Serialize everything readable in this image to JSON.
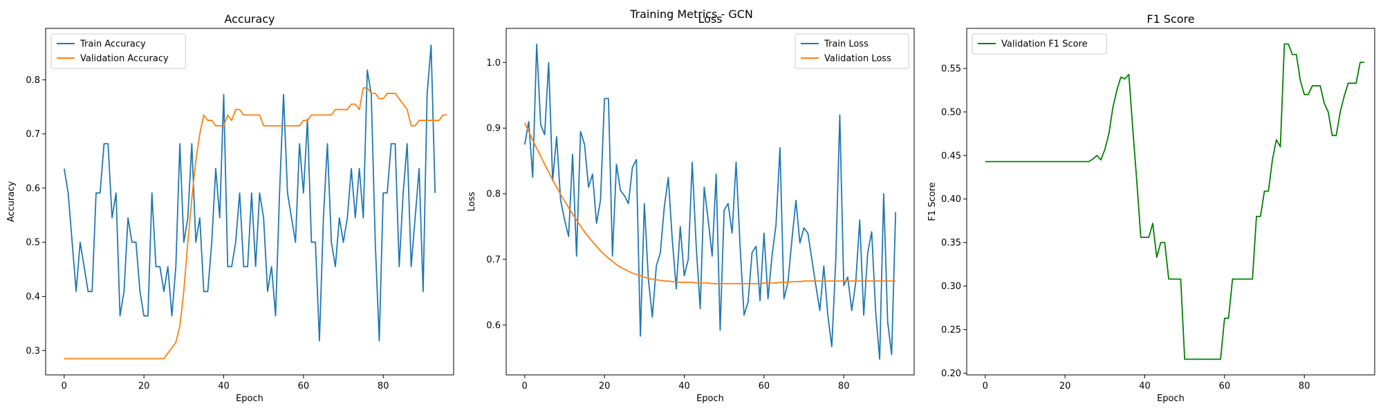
{
  "suptitle": "Training Metrics - GCN",
  "colors": {
    "train": "#1f77b4",
    "validation": "#ff7f0e",
    "f1": "#008000"
  },
  "chart_data": [
    {
      "type": "line",
      "title": "Accuracy",
      "xlabel": "Epoch",
      "ylabel": "Accuracy",
      "xlim": [
        -4.65,
        97.65
      ],
      "ylim": [
        0.255,
        0.895
      ],
      "xticks": [
        0,
        20,
        40,
        60,
        80
      ],
      "yticks": [
        0.3,
        0.4,
        0.5,
        0.6,
        0.7,
        0.8
      ],
      "ytick_labels": [
        "0.3",
        "0.4",
        "0.5",
        "0.6",
        "0.7",
        "0.8"
      ],
      "legend_position": "upper-left",
      "series": [
        {
          "name": "Train Accuracy",
          "color": "#1f77b4",
          "values": [
            0.636,
            0.591,
            0.5,
            0.409,
            0.5,
            0.455,
            0.409,
            0.409,
            0.591,
            0.591,
            0.682,
            0.682,
            0.545,
            0.591,
            0.364,
            0.409,
            0.545,
            0.5,
            0.5,
            0.409,
            0.364,
            0.364,
            0.591,
            0.455,
            0.455,
            0.409,
            0.455,
            0.364,
            0.455,
            0.682,
            0.5,
            0.545,
            0.682,
            0.5,
            0.545,
            0.409,
            0.409,
            0.5,
            0.636,
            0.545,
            0.773,
            0.455,
            0.455,
            0.5,
            0.591,
            0.455,
            0.455,
            0.591,
            0.455,
            0.591,
            0.545,
            0.409,
            0.455,
            0.364,
            0.591,
            0.773,
            0.591,
            0.545,
            0.5,
            0.682,
            0.591,
            0.727,
            0.5,
            0.5,
            0.318,
            0.545,
            0.682,
            0.5,
            0.455,
            0.545,
            0.5,
            0.545,
            0.636,
            0.545,
            0.636,
            0.545,
            0.818,
            0.773,
            0.5,
            0.318,
            0.591,
            0.591,
            0.682,
            0.682,
            0.455,
            0.591,
            0.682,
            0.455,
            0.545,
            0.636,
            0.409,
            0.773,
            0.864,
            0.591
          ]
        },
        {
          "name": "Validation Accuracy",
          "color": "#ff7f0e",
          "values": [
            0.285,
            0.285,
            0.285,
            0.285,
            0.285,
            0.285,
            0.285,
            0.285,
            0.285,
            0.285,
            0.285,
            0.285,
            0.285,
            0.285,
            0.285,
            0.285,
            0.285,
            0.285,
            0.285,
            0.285,
            0.285,
            0.285,
            0.285,
            0.285,
            0.285,
            0.285,
            0.295,
            0.305,
            0.315,
            0.345,
            0.41,
            0.5,
            0.58,
            0.65,
            0.7,
            0.735,
            0.725,
            0.725,
            0.715,
            0.715,
            0.715,
            0.735,
            0.725,
            0.745,
            0.745,
            0.735,
            0.735,
            0.735,
            0.735,
            0.735,
            0.715,
            0.715,
            0.715,
            0.715,
            0.715,
            0.715,
            0.715,
            0.715,
            0.715,
            0.715,
            0.725,
            0.725,
            0.735,
            0.735,
            0.735,
            0.735,
            0.735,
            0.735,
            0.745,
            0.745,
            0.745,
            0.745,
            0.755,
            0.755,
            0.745,
            0.785,
            0.785,
            0.775,
            0.775,
            0.765,
            0.765,
            0.775,
            0.775,
            0.775,
            0.765,
            0.755,
            0.745,
            0.715,
            0.715,
            0.725,
            0.725,
            0.725,
            0.725,
            0.725,
            0.725,
            0.735,
            0.735
          ]
        }
      ]
    },
    {
      "type": "line",
      "title": "Loss",
      "xlabel": "Epoch",
      "ylabel": "Loss",
      "xlim": [
        -4.65,
        97.65
      ],
      "ylim": [
        0.524,
        1.052
      ],
      "xticks": [
        0,
        20,
        40,
        60,
        80
      ],
      "yticks": [
        0.6,
        0.7,
        0.8,
        0.9,
        1.0
      ],
      "ytick_labels": [
        "0.6",
        "0.7",
        "0.8",
        "0.9",
        "1.0"
      ],
      "legend_position": "upper-right",
      "series": [
        {
          "name": "Train Loss",
          "color": "#1f77b4",
          "values": [
            0.875,
            0.91,
            0.825,
            1.028,
            0.905,
            0.89,
            1.0,
            0.82,
            0.887,
            0.79,
            0.76,
            0.735,
            0.86,
            0.705,
            0.895,
            0.875,
            0.81,
            0.83,
            0.755,
            0.79,
            0.945,
            0.945,
            0.705,
            0.845,
            0.805,
            0.797,
            0.785,
            0.84,
            0.852,
            0.583,
            0.785,
            0.67,
            0.612,
            0.69,
            0.71,
            0.78,
            0.825,
            0.73,
            0.655,
            0.75,
            0.675,
            0.7,
            0.848,
            0.72,
            0.625,
            0.81,
            0.76,
            0.705,
            0.83,
            0.592,
            0.775,
            0.785,
            0.74,
            0.848,
            0.72,
            0.615,
            0.635,
            0.71,
            0.72,
            0.637,
            0.74,
            0.64,
            0.705,
            0.752,
            0.87,
            0.64,
            0.665,
            0.73,
            0.79,
            0.725,
            0.748,
            0.74,
            0.7,
            0.66,
            0.622,
            0.69,
            0.615,
            0.567,
            0.7,
            0.92,
            0.66,
            0.673,
            0.622,
            0.665,
            0.76,
            0.615,
            0.71,
            0.742,
            0.62,
            0.548,
            0.8,
            0.605,
            0.555,
            0.772
          ]
        },
        {
          "name": "Validation Loss",
          "color": "#ff7f0e",
          "values": [
            0.908,
            0.895,
            0.882,
            0.869,
            0.857,
            0.845,
            0.833,
            0.821,
            0.81,
            0.799,
            0.789,
            0.779,
            0.769,
            0.76,
            0.751,
            0.742,
            0.734,
            0.727,
            0.72,
            0.713,
            0.707,
            0.702,
            0.697,
            0.692,
            0.688,
            0.685,
            0.682,
            0.679,
            0.677,
            0.675,
            0.673,
            0.671,
            0.67,
            0.669,
            0.668,
            0.667,
            0.667,
            0.666,
            0.666,
            0.665,
            0.665,
            0.665,
            0.665,
            0.664,
            0.664,
            0.664,
            0.664,
            0.663,
            0.663,
            0.663,
            0.663,
            0.663,
            0.663,
            0.663,
            0.663,
            0.663,
            0.663,
            0.663,
            0.663,
            0.663,
            0.664,
            0.664,
            0.664,
            0.664,
            0.665,
            0.665,
            0.665,
            0.666,
            0.666,
            0.666,
            0.667,
            0.667,
            0.667,
            0.667,
            0.667,
            0.667,
            0.667,
            0.667,
            0.667,
            0.667,
            0.667,
            0.667,
            0.667,
            0.667,
            0.667,
            0.667,
            0.667,
            0.667,
            0.667,
            0.667,
            0.667,
            0.667,
            0.667,
            0.667
          ]
        }
      ]
    },
    {
      "type": "line",
      "title": "F1 Score",
      "xlabel": "Epoch",
      "ylabel": "F1 Score",
      "xlim": [
        -4.65,
        97.65
      ],
      "ylim": [
        0.198,
        0.596
      ],
      "xticks": [
        0,
        20,
        40,
        60,
        80
      ],
      "yticks": [
        0.2,
        0.25,
        0.3,
        0.35,
        0.4,
        0.45,
        0.5,
        0.55
      ],
      "ytick_labels": [
        "0.20",
        "0.25",
        "0.30",
        "0.35",
        "0.40",
        "0.45",
        "0.50",
        "0.55"
      ],
      "legend_position": "upper-left",
      "series": [
        {
          "name": "Validation F1 Score",
          "color": "#008000",
          "values": [
            0.443,
            0.443,
            0.443,
            0.443,
            0.443,
            0.443,
            0.443,
            0.443,
            0.443,
            0.443,
            0.443,
            0.443,
            0.443,
            0.443,
            0.443,
            0.443,
            0.443,
            0.443,
            0.443,
            0.443,
            0.443,
            0.443,
            0.443,
            0.443,
            0.443,
            0.443,
            0.443,
            0.446,
            0.45,
            0.445,
            0.457,
            0.475,
            0.505,
            0.525,
            0.54,
            0.538,
            0.543,
            0.48,
            0.42,
            0.356,
            0.356,
            0.356,
            0.372,
            0.333,
            0.35,
            0.35,
            0.308,
            0.308,
            0.308,
            0.308,
            0.216,
            0.216,
            0.216,
            0.216,
            0.216,
            0.216,
            0.216,
            0.216,
            0.216,
            0.216,
            0.263,
            0.263,
            0.308,
            0.308,
            0.308,
            0.308,
            0.308,
            0.308,
            0.38,
            0.38,
            0.409,
            0.409,
            0.445,
            0.468,
            0.46,
            0.578,
            0.578,
            0.566,
            0.566,
            0.536,
            0.52,
            0.52,
            0.53,
            0.53,
            0.53,
            0.51,
            0.5,
            0.473,
            0.473,
            0.5,
            0.518,
            0.533,
            0.533,
            0.533,
            0.557,
            0.557
          ]
        }
      ]
    }
  ]
}
